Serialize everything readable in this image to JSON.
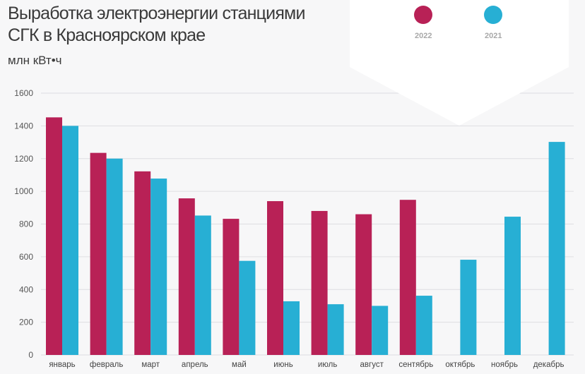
{
  "header": {
    "title": "Выработка электроэнергии станциями СГК в Красноярском крае",
    "unit": "млн кВт•ч"
  },
  "legend": [
    {
      "name": "2022",
      "color": "#b82156"
    },
    {
      "name": "2021",
      "color": "#27afd4"
    }
  ],
  "chart_data": {
    "type": "bar",
    "title": "Выработка электроэнергии станциями СГК в Красноярском крае",
    "xlabel": "",
    "ylabel": "млн кВт•ч",
    "ylim": [
      0,
      1600
    ],
    "yticks": [
      0,
      200,
      400,
      600,
      800,
      1000,
      1200,
      1400,
      1600
    ],
    "grid": true,
    "legend_position": "top-right",
    "categories": [
      "январь",
      "февраль",
      "март",
      "апрель",
      "май",
      "июнь",
      "июль",
      "август",
      "сентябрь",
      "октябрь",
      "ноябрь",
      "декабрь"
    ],
    "series": [
      {
        "name": "2022",
        "color": "#b82156",
        "values": [
          1452,
          1235,
          1122,
          957,
          832,
          940,
          880,
          860,
          948,
          null,
          null,
          null
        ]
      },
      {
        "name": "2021",
        "color": "#27afd4",
        "values": [
          1400,
          1200,
          1078,
          852,
          575,
          328,
          310,
          300,
          362,
          582,
          845,
          1302
        ]
      }
    ]
  }
}
